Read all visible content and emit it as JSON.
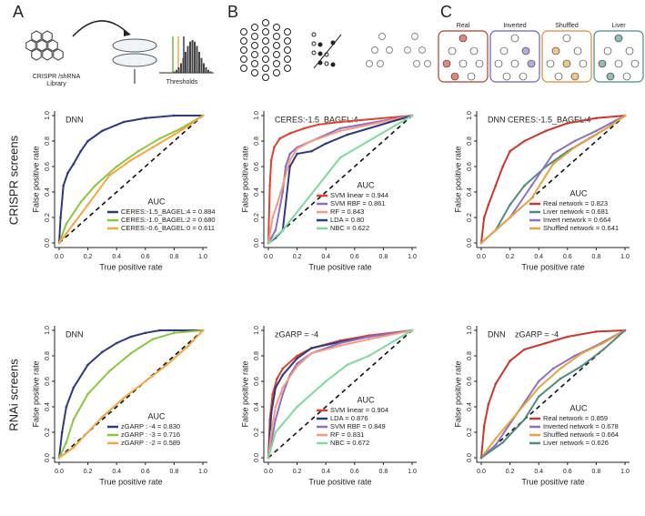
{
  "panel_labels": [
    "A",
    "B",
    "C"
  ],
  "illustrations": {
    "library_label": [
      "CRISPR /shRNA",
      "Library"
    ],
    "thresholds_label": "Thresholds",
    "network_labels": [
      "Real",
      "Inverted",
      "Shuffled",
      "Liver"
    ]
  },
  "row_labels": [
    "CRISPR screens",
    "RNAi screens"
  ],
  "chart_data": [
    {
      "type": "line",
      "title": "DNN",
      "xlabel": "True positive rate",
      "ylabel": "False positive rate",
      "legend_title": "AUC",
      "legend": "lower right",
      "xlim": [
        0,
        1
      ],
      "ylim": [
        0,
        1
      ],
      "xticks": [
        {
          "value": 0,
          "label": "0.0"
        },
        0.2,
        0.4,
        0.6,
        0.8,
        {
          "value": 1,
          "label": "1.0"
        }
      ],
      "yticks": [
        {
          "value": 0,
          "label": "0.0"
        },
        0.2,
        0.4,
        0.6,
        0.8,
        {
          "value": 1,
          "label": "1.0"
        }
      ],
      "series": [
        {
          "name": "CERES:-1.5_BAGEL:4 = 0.884",
          "color": "#2e3a7c",
          "x": [
            0,
            0.01,
            0.03,
            0.06,
            0.1,
            0.15,
            0.2,
            0.3,
            0.45,
            0.6,
            0.8,
            1
          ],
          "values": [
            0,
            0.2,
            0.45,
            0.55,
            0.62,
            0.72,
            0.8,
            0.88,
            0.95,
            0.98,
            1,
            1
          ]
        },
        {
          "name": "CERES:-1.0_BAGEL:2 = 0.680",
          "color": "#8cc63f",
          "x": [
            0,
            0.05,
            0.15,
            0.25,
            0.4,
            0.55,
            0.7,
            0.85,
            1
          ],
          "values": [
            0,
            0.15,
            0.32,
            0.45,
            0.6,
            0.72,
            0.82,
            0.9,
            1
          ]
        },
        {
          "name": "CERES:-0.6_BAGEL:0 = 0.611",
          "color": "#f7a541",
          "x": [
            0,
            0.1,
            0.2,
            0.35,
            0.5,
            0.65,
            0.8,
            0.9,
            1
          ],
          "values": [
            0,
            0.15,
            0.3,
            0.53,
            0.65,
            0.75,
            0.85,
            0.92,
            1
          ]
        }
      ]
    },
    {
      "type": "line",
      "title": "CERES:-1.5_BAGEL:4",
      "xlabel": "True positive rate",
      "ylabel": "False positive rate",
      "legend_title": "AUC",
      "legend": "lower right",
      "xlim": [
        0,
        1
      ],
      "ylim": [
        0,
        1
      ],
      "xticks": [
        {
          "value": 0,
          "label": "0.0"
        },
        0.2,
        0.4,
        0.6,
        0.8,
        {
          "value": 1,
          "label": "1.0"
        }
      ],
      "yticks": [
        {
          "value": 0,
          "label": "0.0"
        },
        0.2,
        0.4,
        0.6,
        0.8,
        {
          "value": 1,
          "label": "1.0"
        }
      ],
      "series": [
        {
          "name": "SVM linear = 0.944",
          "color": "#e0412e",
          "x": [
            0,
            0.01,
            0.02,
            0.04,
            0.08,
            0.15,
            0.25,
            0.35,
            0.5,
            1
          ],
          "values": [
            0,
            0.45,
            0.65,
            0.75,
            0.82,
            0.86,
            0.9,
            0.93,
            0.95,
            1
          ]
        },
        {
          "name": "SVM RBF = 0.861",
          "color": "#8e6fc0",
          "x": [
            0,
            0.05,
            0.1,
            0.12,
            0.15,
            0.2,
            0.3,
            0.5,
            1
          ],
          "values": [
            0,
            0.1,
            0.4,
            0.6,
            0.7,
            0.75,
            0.8,
            0.9,
            1
          ]
        },
        {
          "name": "RF = 0.843",
          "color": "#f59a82",
          "x": [
            0,
            0.03,
            0.06,
            0.1,
            0.15,
            0.2,
            0.3,
            0.5,
            1
          ],
          "values": [
            0,
            0.2,
            0.3,
            0.45,
            0.65,
            0.74,
            0.8,
            0.88,
            1
          ]
        },
        {
          "name": "LDA = 0.80",
          "color": "#2e3a7c",
          "x": [
            0,
            0.05,
            0.1,
            0.15,
            0.2,
            0.3,
            0.4,
            0.55,
            1
          ],
          "values": [
            0,
            0.04,
            0.1,
            0.6,
            0.7,
            0.72,
            0.78,
            0.85,
            1
          ]
        },
        {
          "name": "NBC = 0.622",
          "color": "#7fd8a0",
          "x": [
            0,
            0.1,
            0.5,
            1
          ],
          "values": [
            0,
            0.1,
            0.67,
            1
          ]
        }
      ]
    },
    {
      "type": "line",
      "title": "DNN CERES:-1.5_BAGEL:4",
      "xlabel": "True positive rate",
      "ylabel": "False positive rate",
      "legend_title": "AUC",
      "legend": "lower right",
      "xlim": [
        0,
        1
      ],
      "ylim": [
        0,
        1
      ],
      "xticks": [
        {
          "value": 0,
          "label": "0.0"
        },
        0.2,
        0.4,
        0.6,
        0.8,
        {
          "value": 1,
          "label": "1.0"
        }
      ],
      "yticks": [
        {
          "value": 0,
          "label": "0.0"
        },
        0.2,
        0.4,
        0.6,
        0.8,
        {
          "value": 1,
          "label": "1.0"
        }
      ],
      "series": [
        {
          "name": "Real network = 0.823",
          "color": "#c8382c",
          "x": [
            0,
            0.02,
            0.05,
            0.1,
            0.15,
            0.2,
            0.3,
            0.45,
            0.6,
            0.8,
            1
          ],
          "values": [
            0,
            0.2,
            0.3,
            0.45,
            0.6,
            0.72,
            0.8,
            0.88,
            0.94,
            0.98,
            1
          ]
        },
        {
          "name": "Liver network = 0.681",
          "color": "#4e8a86",
          "x": [
            0,
            0.1,
            0.2,
            0.3,
            0.45,
            0.6,
            0.75,
            0.9,
            1
          ],
          "values": [
            0,
            0.1,
            0.3,
            0.45,
            0.6,
            0.72,
            0.82,
            0.92,
            1
          ]
        },
        {
          "name": "Invert network = 0.664",
          "color": "#8e6fc0",
          "x": [
            0,
            0.1,
            0.2,
            0.35,
            0.5,
            0.65,
            0.8,
            0.9,
            1
          ],
          "values": [
            0,
            0.1,
            0.2,
            0.45,
            0.7,
            0.8,
            0.88,
            0.94,
            1
          ]
        },
        {
          "name": "Shuffled network = 0.641",
          "color": "#e8a33c",
          "x": [
            0,
            0.1,
            0.2,
            0.35,
            0.5,
            0.65,
            0.8,
            0.9,
            1
          ],
          "values": [
            0,
            0.1,
            0.2,
            0.35,
            0.62,
            0.75,
            0.85,
            0.92,
            1
          ]
        }
      ]
    },
    {
      "type": "line",
      "title": "DNN",
      "xlabel": "True positive rate",
      "ylabel": "False positive rate",
      "legend_title": "AUC",
      "legend": "lower right",
      "xlim": [
        0,
        1
      ],
      "ylim": [
        0,
        1
      ],
      "xticks": [
        {
          "value": 0,
          "label": "0.0"
        },
        0.2,
        0.4,
        0.6,
        0.8,
        {
          "value": 1,
          "label": "1.0"
        }
      ],
      "yticks": [
        {
          "value": 0,
          "label": "0.0"
        },
        0.2,
        0.4,
        0.6,
        0.8,
        {
          "value": 1,
          "label": "1.0"
        }
      ],
      "series": [
        {
          "name": "zGARP : -4 = 0.830",
          "color": "#2e3a7c",
          "x": [
            0,
            0.02,
            0.05,
            0.1,
            0.2,
            0.3,
            0.4,
            0.5,
            0.6,
            0.7,
            0.8,
            1
          ],
          "values": [
            0,
            0.2,
            0.4,
            0.55,
            0.73,
            0.83,
            0.9,
            0.95,
            0.98,
            1,
            1,
            1
          ]
        },
        {
          "name": "zGARP : -3 = 0.716",
          "color": "#8cc63f",
          "x": [
            0,
            0.05,
            0.1,
            0.2,
            0.35,
            0.5,
            0.65,
            0.8,
            1
          ],
          "values": [
            0,
            0.12,
            0.3,
            0.5,
            0.68,
            0.82,
            0.93,
            0.98,
            1
          ]
        },
        {
          "name": "zGARP : -2 = 0.589",
          "color": "#f7a541",
          "x": [
            0,
            0.1,
            0.2,
            0.3,
            0.45,
            0.6,
            0.75,
            0.9,
            1
          ],
          "values": [
            0,
            0.08,
            0.2,
            0.32,
            0.47,
            0.6,
            0.73,
            0.88,
            1
          ]
        }
      ]
    },
    {
      "type": "line",
      "title": "zGARP = -4",
      "xlabel": "True positive rate",
      "ylabel": "False positive rate",
      "legend_title": "AUC",
      "legend": "lower right",
      "xlim": [
        0,
        1
      ],
      "ylim": [
        0,
        1
      ],
      "xticks": [
        {
          "value": 0,
          "label": "0.0"
        },
        0.2,
        0.4,
        0.6,
        0.8,
        {
          "value": 1,
          "label": "1.0"
        }
      ],
      "yticks": [
        {
          "value": 0,
          "label": "0.0"
        },
        0.2,
        0.4,
        0.6,
        0.8,
        {
          "value": 1,
          "label": "1.0"
        }
      ],
      "series": [
        {
          "name": "SVM linear = 0.904",
          "color": "#e0412e",
          "x": [
            0,
            0.01,
            0.03,
            0.06,
            0.1,
            0.2,
            0.3,
            0.5,
            0.7,
            1
          ],
          "values": [
            0,
            0.3,
            0.5,
            0.62,
            0.7,
            0.8,
            0.86,
            0.92,
            0.96,
            1
          ]
        },
        {
          "name": "LDA = 0.876",
          "color": "#2e3a7c",
          "x": [
            0,
            0.02,
            0.05,
            0.1,
            0.2,
            0.3,
            0.5,
            0.7,
            1
          ],
          "values": [
            0,
            0.35,
            0.55,
            0.65,
            0.78,
            0.86,
            0.91,
            0.95,
            1
          ]
        },
        {
          "name": "SVM RBF = 0.849",
          "color": "#8e6fc0",
          "x": [
            0,
            0.05,
            0.1,
            0.15,
            0.2,
            0.3,
            0.5,
            0.7,
            1
          ],
          "values": [
            0,
            0.3,
            0.5,
            0.65,
            0.74,
            0.82,
            0.9,
            0.95,
            1
          ]
        },
        {
          "name": "RF = 0.831",
          "color": "#f59a82",
          "x": [
            0,
            0.02,
            0.05,
            0.1,
            0.2,
            0.3,
            0.5,
            0.7,
            1
          ],
          "values": [
            0,
            0.2,
            0.4,
            0.55,
            0.72,
            0.82,
            0.88,
            0.93,
            1
          ]
        },
        {
          "name": "NBC = 0.672",
          "color": "#7fd8a0",
          "x": [
            0,
            0.05,
            0.2,
            0.4,
            0.55,
            0.7,
            1
          ],
          "values": [
            0,
            0.2,
            0.4,
            0.6,
            0.73,
            0.8,
            1
          ]
        }
      ]
    },
    {
      "type": "line",
      "title": "DNN",
      "subtitle": "zGARP = -4",
      "xlabel": "True positive rate",
      "ylabel": "False positive rate",
      "legend_title": "AUC",
      "legend": "lower right",
      "xlim": [
        0,
        1
      ],
      "ylim": [
        0,
        1
      ],
      "xticks": [
        {
          "value": 0,
          "label": "0.0"
        },
        0.2,
        0.4,
        0.6,
        0.8,
        {
          "value": 1,
          "label": "1.0"
        }
      ],
      "yticks": [
        {
          "value": 0,
          "label": "0.0"
        },
        0.2,
        0.4,
        0.6,
        0.8,
        {
          "value": 1,
          "label": "1.0"
        }
      ],
      "series": [
        {
          "name": "Real network = 0.859",
          "color": "#c8382c",
          "x": [
            0,
            0.02,
            0.05,
            0.1,
            0.2,
            0.3,
            0.45,
            0.6,
            0.8,
            1
          ],
          "values": [
            0,
            0.25,
            0.42,
            0.58,
            0.76,
            0.85,
            0.9,
            0.95,
            0.99,
            1
          ]
        },
        {
          "name": "Inverted network = 0.678",
          "color": "#8e6fc0",
          "x": [
            0,
            0.1,
            0.25,
            0.4,
            0.5,
            0.65,
            0.8,
            1
          ],
          "values": [
            0,
            0.1,
            0.35,
            0.6,
            0.7,
            0.8,
            0.88,
            1
          ]
        },
        {
          "name": "Shuffled network = 0.664",
          "color": "#e8a33c",
          "x": [
            0,
            0.1,
            0.25,
            0.4,
            0.55,
            0.7,
            0.85,
            1
          ],
          "values": [
            0,
            0.15,
            0.35,
            0.55,
            0.7,
            0.82,
            0.9,
            1
          ]
        },
        {
          "name": "Liver network = 0.626",
          "color": "#4e8a86",
          "x": [
            0,
            0.15,
            0.3,
            0.4,
            0.55,
            0.7,
            0.85,
            1
          ],
          "values": [
            0,
            0.12,
            0.3,
            0.48,
            0.62,
            0.72,
            0.85,
            1
          ]
        }
      ]
    }
  ]
}
